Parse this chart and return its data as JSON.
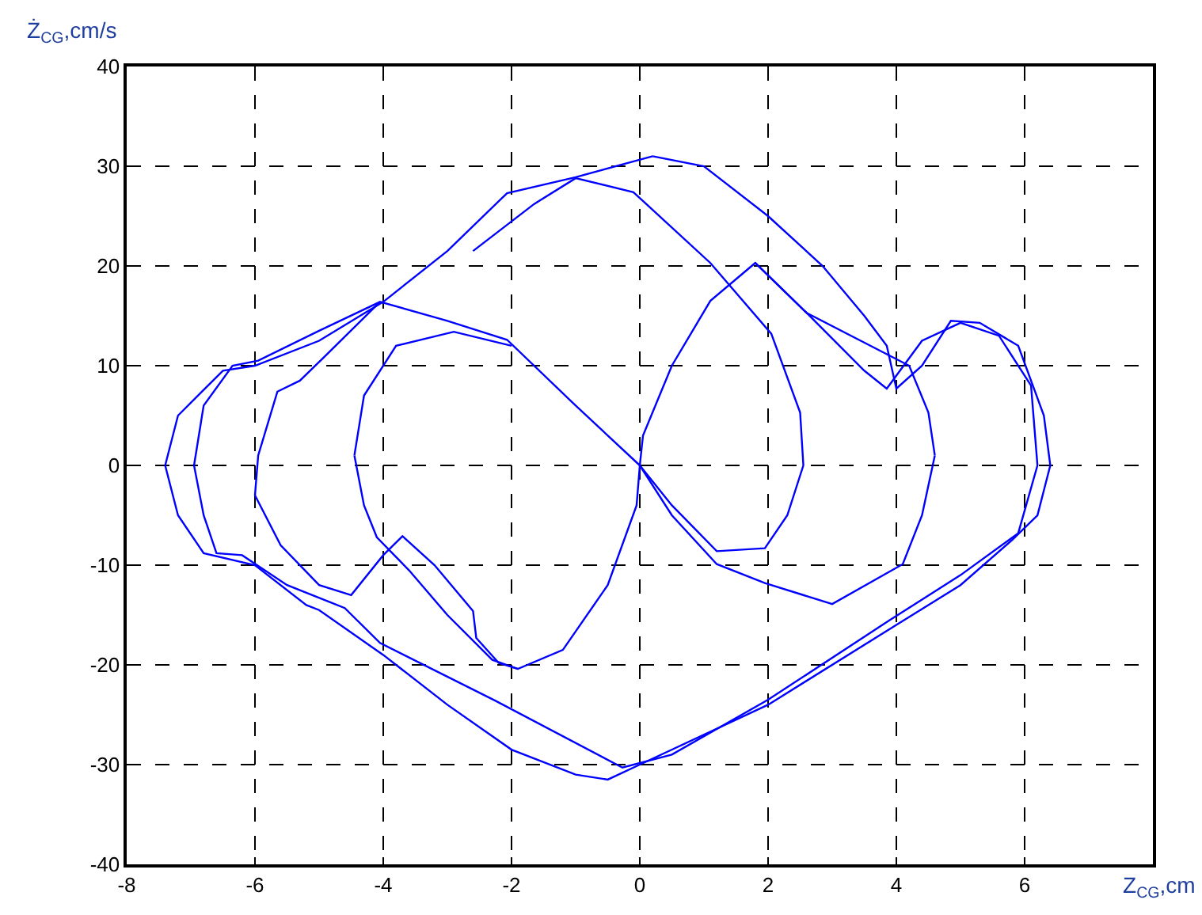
{
  "chart_data": {
    "type": "line",
    "xlabel": "Z$_{CG}$,cm",
    "ylabel": "Ż$_{CG}$,cm/s",
    "xlim": [
      -8,
      8
    ],
    "ylim": [
      -40,
      40
    ],
    "xticks": [
      -8,
      -6,
      -4,
      -2,
      0,
      2,
      4,
      6
    ],
    "yticks": [
      -40,
      -30,
      -20,
      -10,
      0,
      10,
      20,
      30,
      40
    ],
    "grid": true,
    "line_style": "solid",
    "marker": "none",
    "series": [
      {
        "color": "#0000ff",
        "x": [
          0.2,
          1,
          2,
          2.85,
          3.5,
          3.85,
          4.0,
          4.4,
          4.85,
          5.3,
          5.9,
          6.3,
          6.4,
          null,
          6.4,
          6.2,
          5.8,
          5,
          4,
          2,
          0,
          -0.5,
          -1,
          -2,
          -3,
          -4,
          -5,
          -5.2,
          -6,
          -6.8,
          -7.2,
          -7.4,
          null,
          -7.4,
          -7.2,
          -6.5,
          -6,
          -5,
          -4,
          -3,
          -2.07,
          -1,
          0.2,
          null,
          0,
          -1,
          -2.07,
          -3,
          -4.05,
          -5,
          -5.95,
          -6.35,
          -6.8,
          -6.95,
          null,
          -6.95,
          -6.8,
          -6.6,
          -6.2,
          -5.5,
          -4.6,
          -4.05,
          -2.25,
          -0.27,
          0.5,
          2,
          3.9,
          5,
          5.9,
          6.2,
          null,
          6.2,
          6.1,
          5.6,
          5,
          4.4,
          3.85,
          3.5,
          2.6,
          1.8,
          1.1,
          0.5,
          0.05,
          0,
          null,
          -2,
          -2.9,
          -3.8,
          -4.3,
          -4.45,
          null,
          -4.45,
          -4.3,
          -4.1,
          -3.6,
          -3,
          -2.3,
          -1.9,
          -1.2,
          -0.5,
          -0.05,
          0,
          null,
          -4.05,
          -4.9,
          -5.3,
          -5.65,
          -5.95,
          -6,
          null,
          -6,
          -5.6,
          -5,
          -4.5,
          -4,
          -3.7,
          -3.2,
          -2.6,
          -2.55,
          -2.2,
          -1.9,
          null,
          -2.6,
          -1.65,
          -1,
          -0.1,
          1.1,
          2.05,
          2.5,
          2.55,
          null,
          2.55,
          2.3,
          1.95,
          1.2,
          0.5,
          0,
          null,
          1.8,
          2.6,
          4.2,
          4.5,
          4.6,
          null,
          4.6,
          4.4,
          4.1,
          3.0,
          1.95,
          1.2,
          0.5,
          0
        ],
        "values": [
          31,
          30,
          25,
          20,
          15,
          12,
          7.7,
          10,
          14.5,
          14.3,
          12,
          5,
          0,
          null,
          0,
          -5,
          -7.5,
          -12,
          -16,
          -24,
          -30,
          -31.5,
          -31,
          -28.5,
          -24,
          -19,
          -14.5,
          -14,
          -10,
          -8.8,
          -5,
          0,
          null,
          0,
          5,
          9.5,
          10,
          12.5,
          16.4,
          21.5,
          27.3,
          28.9,
          31,
          null,
          0,
          6,
          12.6,
          14.5,
          16.4,
          13.5,
          10.5,
          10,
          6,
          0,
          null,
          0,
          -5,
          -8.8,
          -9,
          -12,
          -14.3,
          -17.8,
          -23.6,
          -30.3,
          -29,
          -23.5,
          -15.5,
          -11,
          -6.8,
          0,
          null,
          0,
          8,
          13,
          14.3,
          12.5,
          7.7,
          9.5,
          15.3,
          20.3,
          16.5,
          10,
          3,
          0,
          null,
          12,
          13.4,
          12,
          7,
          1,
          null,
          1,
          -4,
          -7.2,
          -10.5,
          -15,
          -19.5,
          -20.4,
          -18.5,
          -12,
          -4,
          0,
          null,
          16.4,
          11,
          8.5,
          7.4,
          1,
          -3,
          null,
          -3,
          -8,
          -12,
          -13,
          -9,
          -7.1,
          -10,
          -14.6,
          -17.3,
          -19.8,
          -20.4,
          null,
          21.5,
          26.2,
          28.8,
          27.4,
          20.3,
          13.2,
          5.3,
          0,
          null,
          0,
          -5,
          -8.3,
          -8.6,
          -4,
          0,
          null,
          20.3,
          15.3,
          10,
          5.3,
          1,
          null,
          1,
          -5,
          -9.9,
          -13.9,
          -11.8,
          -9.9,
          -5,
          0
        ]
      }
    ]
  }
}
